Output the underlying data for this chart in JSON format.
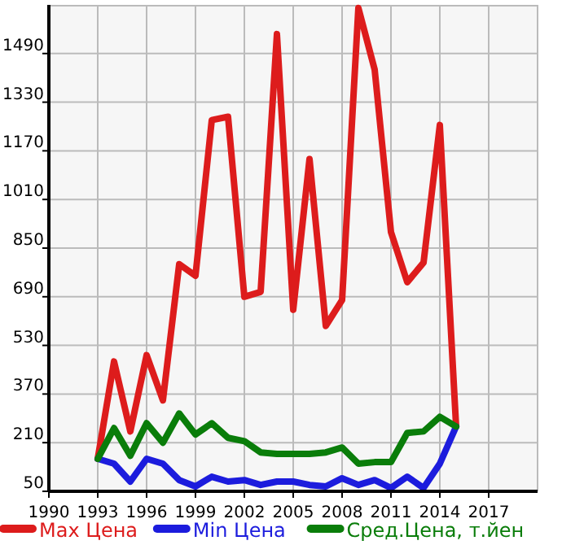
{
  "chart_data": {
    "type": "line",
    "x": [
      1993,
      1994,
      1995,
      1996,
      1997,
      1998,
      1999,
      2000,
      2001,
      2002,
      2003,
      2004,
      2005,
      2006,
      2007,
      2008,
      2009,
      2010,
      2011,
      2012,
      2013,
      2014,
      2015
    ],
    "series": [
      {
        "name": "Max Цена",
        "color": "#dd1c1c",
        "values": [
          157,
          477,
          247,
          498,
          349,
          797,
          759,
          1271,
          1282,
          690,
          706,
          1554,
          647,
          1143,
          594,
          679,
          1640,
          1437,
          903,
          738,
          802,
          1255,
          263
        ]
      },
      {
        "name": "Min Цена",
        "color": "#1c1cdd",
        "values": [
          157,
          141,
          82,
          157,
          141,
          87,
          66,
          98,
          82,
          87,
          71,
          82,
          82,
          71,
          66,
          93,
          71,
          87,
          61,
          98,
          61,
          141,
          263
        ]
      },
      {
        "name": "Сред.Цена, т.йен",
        "color": "#0a7d0a",
        "values": [
          157,
          258,
          167,
          274,
          210,
          306,
          237,
          274,
          226,
          215,
          178,
          173,
          173,
          173,
          178,
          194,
          141,
          146,
          146,
          242,
          247,
          295,
          263
        ]
      }
    ],
    "xlim": [
      1990,
      2020
    ],
    "xticks": [
      1990,
      1993,
      1996,
      1999,
      2002,
      2005,
      2008,
      2011,
      2014,
      2017
    ],
    "ylim": [
      50,
      1650
    ],
    "yticks": [
      50,
      210,
      370,
      530,
      690,
      850,
      1010,
      1170,
      1330,
      1490
    ],
    "grid": true,
    "legend": "bottom",
    "marker": "none",
    "line_style": "solid"
  }
}
